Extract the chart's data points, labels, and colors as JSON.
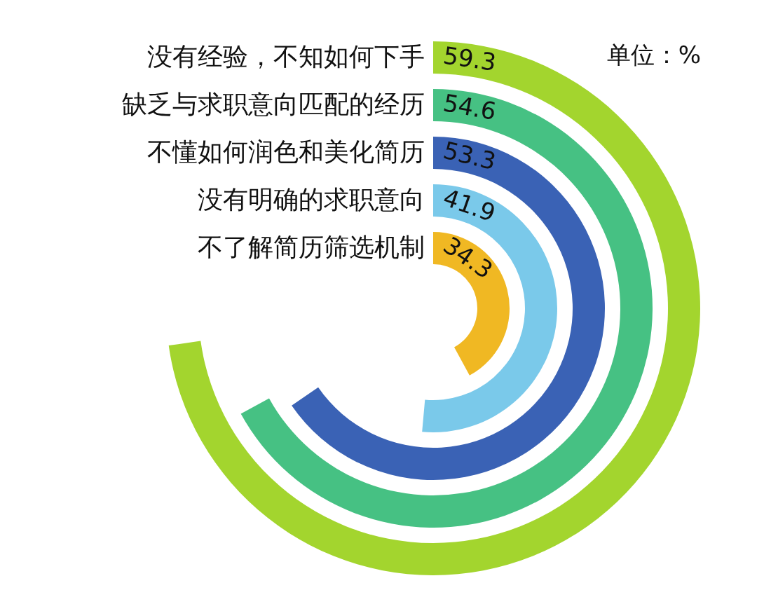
{
  "chart_data": {
    "type": "other",
    "categories": [
      "没有经验，不知如何下手",
      "缺乏与求职意向匹配的经历",
      "不懂如何润色和美化简历",
      "没有明确的求职意向",
      "不了解简历筛选机制"
    ],
    "values": [
      59.3,
      54.6,
      53.3,
      41.9,
      34.3
    ],
    "colors": [
      "#a3d52e",
      "#46c183",
      "#3a62b5",
      "#7ac9ea",
      "#f0b823"
    ],
    "data_labels": true,
    "annotations": [
      "单位：%"
    ]
  }
}
